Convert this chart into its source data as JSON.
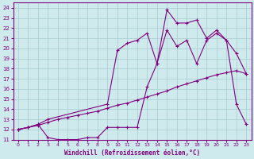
{
  "xlabel": "Windchill (Refroidissement éolien,°C)",
  "xlim": [
    -0.5,
    23.5
  ],
  "ylim": [
    11,
    24.5
  ],
  "xticks": [
    0,
    1,
    2,
    3,
    4,
    5,
    6,
    7,
    8,
    9,
    10,
    11,
    12,
    13,
    14,
    15,
    16,
    17,
    18,
    19,
    20,
    21,
    22,
    23
  ],
  "yticks": [
    11,
    12,
    13,
    14,
    15,
    16,
    17,
    18,
    19,
    20,
    21,
    22,
    23,
    24
  ],
  "line_color": "#800080",
  "bg_color": "#ceeaec",
  "grid_color": "#aacdd0",
  "line1_x": [
    0,
    1,
    2,
    3,
    4,
    5,
    6,
    7,
    8,
    9,
    10,
    11,
    12,
    13,
    14,
    15,
    16,
    17,
    18,
    19,
    20,
    21,
    22,
    23
  ],
  "line1_y": [
    12.0,
    12.2,
    12.4,
    12.7,
    13.0,
    13.2,
    13.4,
    13.6,
    13.8,
    14.1,
    14.4,
    14.6,
    14.9,
    15.2,
    15.5,
    15.8,
    16.2,
    16.5,
    16.8,
    17.1,
    17.4,
    17.6,
    17.8,
    17.5
  ],
  "line2_x": [
    0,
    1,
    2,
    3,
    9,
    10,
    11,
    12,
    13,
    14,
    15,
    16,
    17,
    18,
    19,
    20,
    21,
    22,
    23
  ],
  "line2_y": [
    12.0,
    12.2,
    12.5,
    13.0,
    14.5,
    19.8,
    20.5,
    20.8,
    21.5,
    18.5,
    23.8,
    22.5,
    22.5,
    22.8,
    21.0,
    21.8,
    20.8,
    19.5,
    17.5
  ],
  "line3_x": [
    0,
    1,
    2,
    3,
    4,
    5,
    6,
    7,
    8,
    9,
    10,
    11,
    12,
    13,
    14,
    15,
    16,
    17,
    18,
    19,
    20,
    21,
    22,
    23
  ],
  "line3_y": [
    12.0,
    12.2,
    12.5,
    11.2,
    11.0,
    11.0,
    11.0,
    11.2,
    11.2,
    12.2,
    12.2,
    12.2,
    12.2,
    16.2,
    18.5,
    21.8,
    20.2,
    20.8,
    18.5,
    20.8,
    21.5,
    20.8,
    14.5,
    12.5
  ]
}
